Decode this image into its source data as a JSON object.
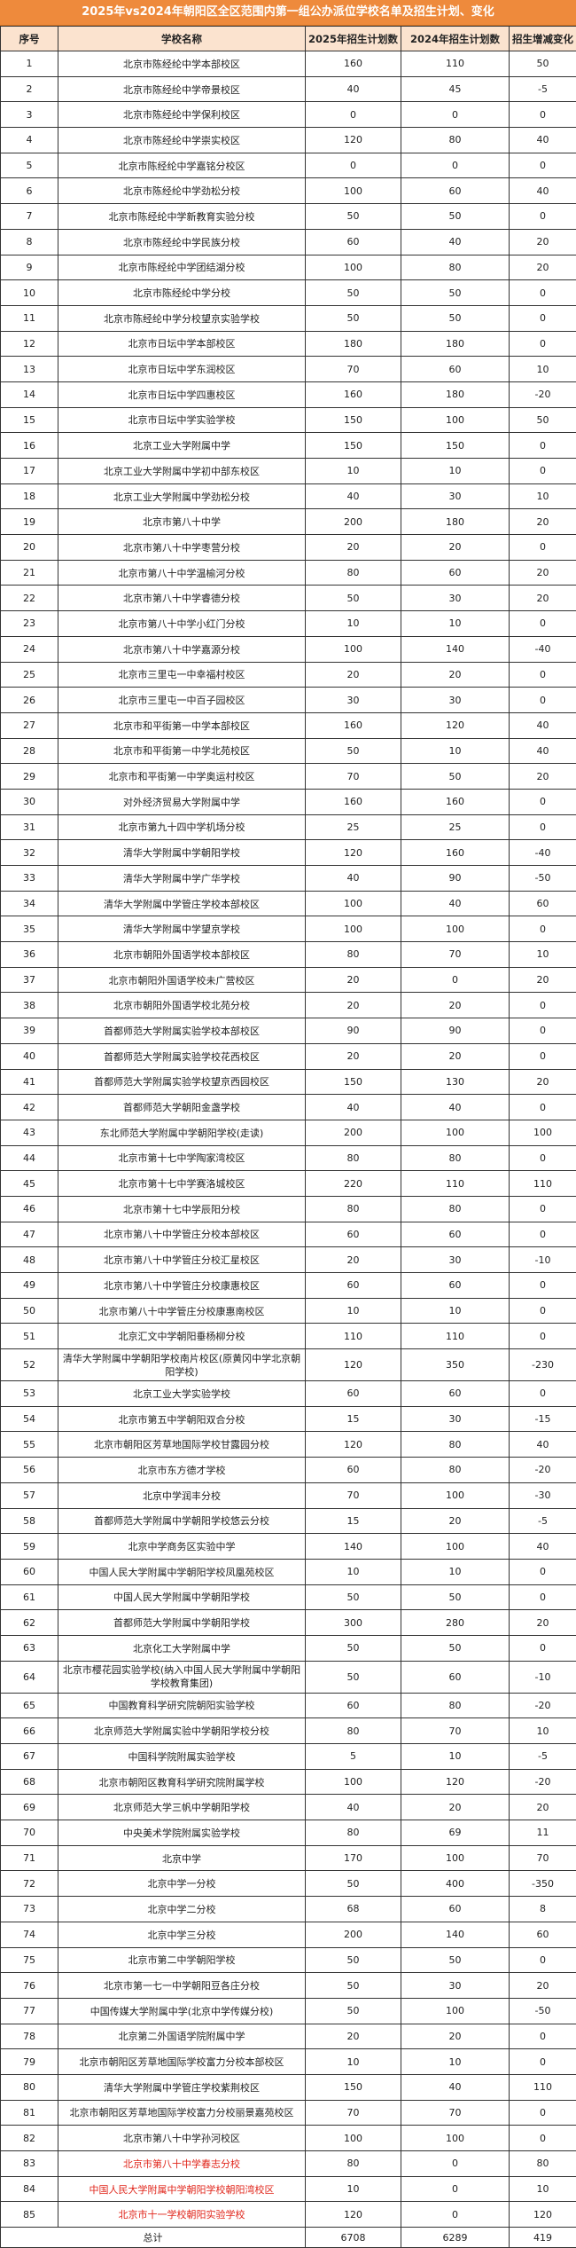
{
  "title": "2025年vs2024年朝阳区全区范围内第一组公办派位学校名单及招生计划、变化",
  "headers": [
    "序号",
    "学校名称",
    "2025年招生计划数",
    "2024年招生计划数",
    "招生增减变化"
  ],
  "highlight_color": "#e0261b",
  "rows": [
    [
      "1",
      "北京市陈经纶中学本部校区",
      "160",
      "110",
      "50"
    ],
    [
      "2",
      "北京市陈经纶中学帝景校区",
      "40",
      "45",
      "-5"
    ],
    [
      "3",
      "北京市陈经纶中学保利校区",
      "0",
      "0",
      "0"
    ],
    [
      "4",
      "北京市陈经纶中学崇实校区",
      "120",
      "80",
      "40"
    ],
    [
      "5",
      "北京市陈经纶中学嘉铭分校区",
      "0",
      "0",
      "0"
    ],
    [
      "6",
      "北京市陈经纶中学劲松分校",
      "100",
      "60",
      "40"
    ],
    [
      "7",
      "北京市陈经纶中学新教育实验分校",
      "50",
      "50",
      "0"
    ],
    [
      "8",
      "北京市陈经纶中学民族分校",
      "60",
      "40",
      "20"
    ],
    [
      "9",
      "北京市陈经纶中学团结湖分校",
      "100",
      "80",
      "20"
    ],
    [
      "10",
      "北京市陈经纶中学分校",
      "50",
      "50",
      "0"
    ],
    [
      "11",
      "北京市陈经纶中学分校望京实验学校",
      "50",
      "50",
      "0"
    ],
    [
      "12",
      "北京市日坛中学本部校区",
      "180",
      "180",
      "0"
    ],
    [
      "13",
      "北京市日坛中学东润校区",
      "70",
      "60",
      "10"
    ],
    [
      "14",
      "北京市日坛中学四惠校区",
      "160",
      "180",
      "-20"
    ],
    [
      "15",
      "北京市日坛中学实验学校",
      "150",
      "100",
      "50"
    ],
    [
      "16",
      "北京工业大学附属中学",
      "150",
      "150",
      "0"
    ],
    [
      "17",
      "北京工业大学附属中学初中部东校区",
      "10",
      "10",
      "0"
    ],
    [
      "18",
      "北京工业大学附属中学劲松分校",
      "40",
      "30",
      "10"
    ],
    [
      "19",
      "北京市第八十中学",
      "200",
      "180",
      "20"
    ],
    [
      "20",
      "北京市第八十中学枣营分校",
      "20",
      "20",
      "0"
    ],
    [
      "21",
      "北京市第八十中学温榆河分校",
      "80",
      "60",
      "20"
    ],
    [
      "22",
      "北京市第八十中学睿德分校",
      "50",
      "30",
      "20"
    ],
    [
      "23",
      "北京市第八十中学小红门分校",
      "10",
      "10",
      "0"
    ],
    [
      "24",
      "北京市第八十中学嘉源分校",
      "100",
      "140",
      "-40"
    ],
    [
      "25",
      "北京市三里屯一中幸福村校区",
      "20",
      "20",
      "0"
    ],
    [
      "26",
      "北京市三里屯一中百子园校区",
      "30",
      "30",
      "0"
    ],
    [
      "27",
      "北京市和平街第一中学本部校区",
      "160",
      "120",
      "40"
    ],
    [
      "28",
      "北京市和平街第一中学北苑校区",
      "50",
      "10",
      "40"
    ],
    [
      "29",
      "北京市和平街第一中学奥运村校区",
      "70",
      "50",
      "20"
    ],
    [
      "30",
      "对外经济贸易大学附属中学",
      "160",
      "160",
      "0"
    ],
    [
      "31",
      "北京市第九十四中学机场分校",
      "25",
      "25",
      "0"
    ],
    [
      "32",
      "清华大学附属中学朝阳学校",
      "120",
      "160",
      "-40"
    ],
    [
      "33",
      "清华大学附属中学广华学校",
      "40",
      "90",
      "-50"
    ],
    [
      "34",
      "清华大学附属中学管庄学校本部校区",
      "100",
      "40",
      "60"
    ],
    [
      "35",
      "清华大学附属中学望京学校",
      "100",
      "100",
      "0"
    ],
    [
      "36",
      "北京市朝阳外国语学校本部校区",
      "80",
      "70",
      "10"
    ],
    [
      "37",
      "北京市朝阳外国语学校未广营校区",
      "20",
      "0",
      "20"
    ],
    [
      "38",
      "北京市朝阳外国语学校北苑分校",
      "20",
      "20",
      "0"
    ],
    [
      "39",
      "首都师范大学附属实验学校本部校区",
      "90",
      "90",
      "0"
    ],
    [
      "40",
      "首都师范大学附属实验学校花西校区",
      "20",
      "20",
      "0"
    ],
    [
      "41",
      "首都师范大学附属实验学校望京西园校区",
      "150",
      "130",
      "20"
    ],
    [
      "42",
      "首都师范大学朝阳金盏学校",
      "40",
      "40",
      "0"
    ],
    [
      "43",
      "东北师范大学附属中学朝阳学校(走读)",
      "200",
      "100",
      "100"
    ],
    [
      "44",
      "北京市第十七中学陶家湾校区",
      "80",
      "80",
      "0"
    ],
    [
      "45",
      "北京市第十七中学赛洛城校区",
      "220",
      "110",
      "110"
    ],
    [
      "46",
      "北京市第十七中学辰阳分校",
      "80",
      "80",
      "0"
    ],
    [
      "47",
      "北京市第八十中学管庄分校本部校区",
      "60",
      "60",
      "0"
    ],
    [
      "48",
      "北京市第八十中学管庄分校汇星校区",
      "20",
      "30",
      "-10"
    ],
    [
      "49",
      "北京市第八十中学管庄分校康惠校区",
      "60",
      "60",
      "0"
    ],
    [
      "50",
      "北京市第八十中学管庄分校康惠南校区",
      "10",
      "10",
      "0"
    ],
    [
      "51",
      "北京汇文中学朝阳垂杨柳分校",
      "110",
      "110",
      "0"
    ],
    [
      "52",
      "清华大学附属中学朝阳学校南片校区(原黄冈中学北京朝阳学校)",
      "120",
      "350",
      "-230"
    ],
    [
      "53",
      "北京工业大学实验学校",
      "60",
      "60",
      "0"
    ],
    [
      "54",
      "北京市第五中学朝阳双合分校",
      "15",
      "30",
      "-15"
    ],
    [
      "55",
      "北京市朝阳区芳草地国际学校甘露园分校",
      "120",
      "80",
      "40"
    ],
    [
      "56",
      "北京市东方德才学校",
      "60",
      "80",
      "-20"
    ],
    [
      "57",
      "北京中学润丰分校",
      "70",
      "100",
      "-30"
    ],
    [
      "58",
      "首都师范大学附属中学朝阳学校悠云分校",
      "15",
      "20",
      "-5"
    ],
    [
      "59",
      "北京中学商务区实验中学",
      "140",
      "100",
      "40"
    ],
    [
      "60",
      "中国人民大学附属中学朝阳学校凤凰苑校区",
      "10",
      "10",
      "0"
    ],
    [
      "61",
      "中国人民大学附属中学朝阳学校",
      "50",
      "50",
      "0"
    ],
    [
      "62",
      "首都师范大学附属中学朝阳学校",
      "300",
      "280",
      "20"
    ],
    [
      "63",
      "北京化工大学附属中学",
      "50",
      "50",
      "0"
    ],
    [
      "64",
      "北京市樱花园实验学校(纳入中国人民大学附属中学朝阳学校教育集团)",
      "50",
      "60",
      "-10"
    ],
    [
      "65",
      "中国教育科学研究院朝阳实验学校",
      "60",
      "80",
      "-20"
    ],
    [
      "66",
      "北京师范大学附属实验中学朝阳学校分校",
      "80",
      "70",
      "10"
    ],
    [
      "67",
      "中国科学院附属实验学校",
      "5",
      "10",
      "-5"
    ],
    [
      "68",
      "北京市朝阳区教育科学研究院附属学校",
      "100",
      "120",
      "-20"
    ],
    [
      "69",
      "北京师范大学三帆中学朝阳学校",
      "40",
      "20",
      "20"
    ],
    [
      "70",
      "中央美术学院附属实验学校",
      "80",
      "69",
      "11"
    ],
    [
      "71",
      "北京中学",
      "170",
      "100",
      "70"
    ],
    [
      "72",
      "北京中学一分校",
      "50",
      "400",
      "-350"
    ],
    [
      "73",
      "北京中学二分校",
      "68",
      "60",
      "8"
    ],
    [
      "74",
      "北京中学三分校",
      "200",
      "140",
      "60"
    ],
    [
      "75",
      "北京市第二中学朝阳学校",
      "50",
      "50",
      "0"
    ],
    [
      "76",
      "北京市第一七一中学朝阳豆各庄分校",
      "50",
      "30",
      "20"
    ],
    [
      "77",
      "中国传媒大学附属中学(北京中学传媒分校)",
      "50",
      "100",
      "-50"
    ],
    [
      "78",
      "北京第二外国语学院附属中学",
      "20",
      "20",
      "0"
    ],
    [
      "79",
      "北京市朝阳区芳草地国际学校富力分校本部校区",
      "10",
      "10",
      "0"
    ],
    [
      "80",
      "清华大学附属中学管庄学校紫荆校区",
      "150",
      "40",
      "110"
    ],
    [
      "81",
      "北京市朝阳区芳草地国际学校富力分校丽景嘉苑校区",
      "70",
      "70",
      "0"
    ],
    [
      "82",
      "北京市第八十中学孙河校区",
      "100",
      "100",
      "0"
    ],
    [
      "83",
      "北京市第八十中学春志分校",
      "80",
      "0",
      "80"
    ],
    [
      "84",
      "中国人民大学附属中学朝阳学校朝阳湾校区",
      "10",
      "0",
      "10"
    ],
    [
      "85",
      "北京市十一学校朝阳实验学校",
      "120",
      "0",
      "120"
    ]
  ],
  "highlighted_rows": [
    "83",
    "84",
    "85"
  ],
  "total": {
    "label": "总计",
    "y2025": "6708",
    "y2024": "6289",
    "change": "419"
  }
}
